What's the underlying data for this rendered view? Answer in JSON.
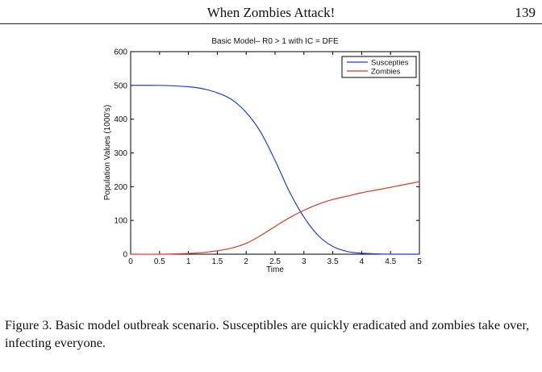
{
  "header": {
    "running_title": "When Zombies Attack!",
    "page_number": "139"
  },
  "chart_data": {
    "type": "line",
    "title": "Basic Model– R0 > 1 with IC = DFE",
    "xlabel": "Time",
    "ylabel": "Population Values (1000's)",
    "xlim": [
      0,
      5
    ],
    "ylim": [
      0,
      600
    ],
    "xticks": [
      "0",
      "0.5",
      "1",
      "1.5",
      "2",
      "2.5",
      "3",
      "3.5",
      "4",
      "4.5",
      "5"
    ],
    "yticks": [
      "0",
      "100",
      "200",
      "300",
      "400",
      "500",
      "600"
    ],
    "grid": false,
    "legend_position": "top-right",
    "series": [
      {
        "name": "Suscepties",
        "color": "#1f3fe0",
        "x": [
          0,
          0.5,
          1,
          1.25,
          1.5,
          1.75,
          2,
          2.25,
          2.5,
          2.75,
          3,
          3.25,
          3.5,
          3.75,
          4,
          4.25,
          4.5,
          5
        ],
        "y": [
          500,
          500,
          496,
          490,
          478,
          458,
          420,
          362,
          278,
          185,
          110,
          55,
          23,
          8,
          3,
          1,
          0,
          0
        ]
      },
      {
        "name": "Zombies",
        "color": "#e23a1c",
        "x": [
          0,
          0.5,
          1,
          1.25,
          1.5,
          1.75,
          2,
          2.25,
          2.5,
          2.75,
          3,
          3.25,
          3.5,
          3.75,
          4,
          4.25,
          4.5,
          5
        ],
        "y": [
          0,
          0,
          2,
          5,
          10,
          18,
          32,
          55,
          82,
          108,
          130,
          148,
          162,
          172,
          182,
          190,
          198,
          215
        ]
      }
    ]
  },
  "caption": {
    "text": "Figure 3. Basic model outbreak scenario. Susceptibles are quickly eradicated and zombies take over, infecting everyone."
  }
}
